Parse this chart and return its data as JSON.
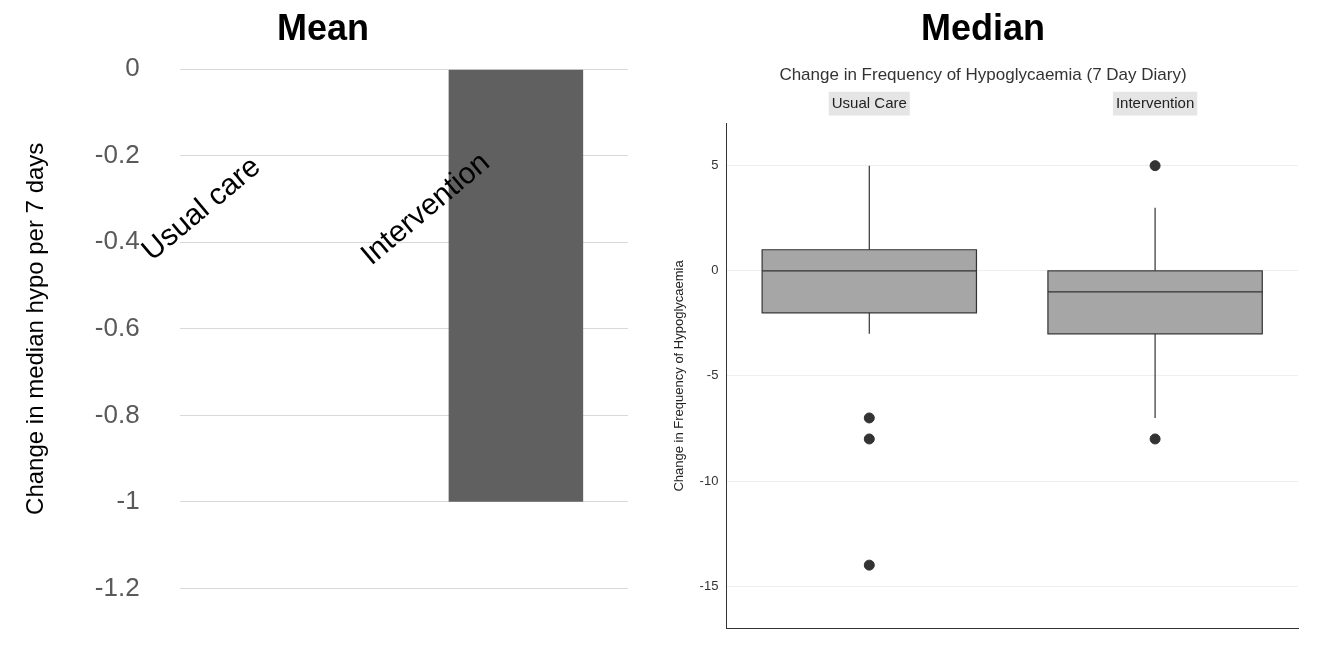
{
  "chart_data": [
    {
      "type": "bar",
      "title": "Mean",
      "ylabel": "Change in median hypo per 7 days",
      "categories": [
        "Usual care",
        "Intervention"
      ],
      "values": [
        0,
        -1
      ],
      "color": "#606060",
      "ylim": [
        -1.2,
        0
      ],
      "yticks": [
        0,
        -0.2,
        -0.4,
        -0.6,
        -0.8,
        -1,
        -1.2
      ],
      "grid": "y"
    },
    {
      "type": "box",
      "title": "Median",
      "subtitle": "Change in Frequency of Hypoglycaemia (7 Day Diary)",
      "ylabel": "Change in Frequency of Hypoglycaemia",
      "categories": [
        "Usual Care",
        "Intervention"
      ],
      "color": "#a6a6a6",
      "boxes": [
        {
          "low": -3,
          "q1": -2,
          "median": 0,
          "q3": 1,
          "high": 5,
          "outliers": [
            -7,
            -8,
            -14
          ]
        },
        {
          "low": -7,
          "q1": -3,
          "median": -1,
          "q3": 0,
          "high": 3,
          "outliers": [
            5,
            -8
          ]
        }
      ],
      "ylim": [
        -17,
        7
      ],
      "yticks": [
        5,
        0,
        -5,
        -10,
        -15
      ],
      "grid": "y"
    }
  ]
}
